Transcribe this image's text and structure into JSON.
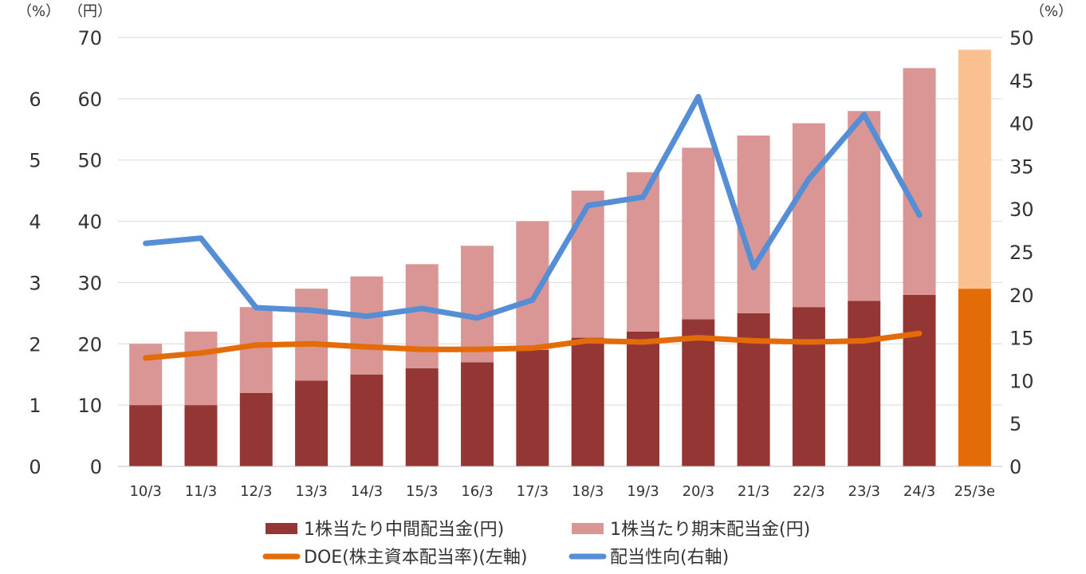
{
  "chart_data": {
    "type": "bar",
    "categories": [
      "10/3",
      "11/3",
      "12/3",
      "13/3",
      "14/3",
      "15/3",
      "16/3",
      "17/3",
      "18/3",
      "19/3",
      "20/3",
      "21/3",
      "22/3",
      "23/3",
      "24/3",
      "25/3e"
    ],
    "series": [
      {
        "name": "1株当たり中間配当金(円)",
        "type": "bar",
        "axis": "yen",
        "values": [
          10,
          10,
          12,
          14,
          15,
          16,
          17,
          19,
          21,
          22,
          24,
          25,
          26,
          27,
          28,
          29
        ],
        "color": "#943634",
        "estimate_color": "#e36c09"
      },
      {
        "name": "1株当たり期末配当金(円)",
        "type": "bar",
        "axis": "yen",
        "values": [
          10,
          12,
          14,
          15,
          16,
          17,
          19,
          21,
          24,
          26,
          28,
          29,
          30,
          31,
          37,
          39
        ],
        "color": "#d99694",
        "estimate_color": "#fac090"
      },
      {
        "name": "DOE(株主資本配当率)(左軸)",
        "type": "line",
        "axis": "pct_left",
        "values": [
          1.77,
          1.85,
          1.98,
          2.0,
          1.95,
          1.91,
          1.91,
          1.93,
          2.05,
          2.03,
          2.1,
          2.05,
          2.03,
          2.05,
          2.17,
          null
        ],
        "color": "#e36c09"
      },
      {
        "name": "配当性向(右軸)",
        "type": "line",
        "axis": "pct_right",
        "values": [
          26,
          26.6,
          18.5,
          18.2,
          17.5,
          18.4,
          17.3,
          19.4,
          30.4,
          31.4,
          43.1,
          23.2,
          33.5,
          41,
          29.3,
          null
        ],
        "color": "#558ed5"
      }
    ],
    "axes": {
      "pct_left": {
        "unit": "（%）",
        "ticks": [
          "0",
          "1",
          "2",
          "3",
          "4",
          "5",
          "6"
        ],
        "ylim": [
          0,
          7
        ]
      },
      "yen": {
        "unit": "（円）",
        "ticks": [
          "0",
          "10",
          "20",
          "30",
          "40",
          "50",
          "60",
          "70"
        ],
        "ylim": [
          0,
          70
        ]
      },
      "pct_right": {
        "unit": "（%）",
        "ticks": [
          "0",
          "5",
          "10",
          "15",
          "20",
          "25",
          "30",
          "35",
          "40",
          "45",
          "50"
        ],
        "ylim": [
          0,
          50
        ]
      }
    },
    "grid": true,
    "legend_position": "bottom"
  }
}
